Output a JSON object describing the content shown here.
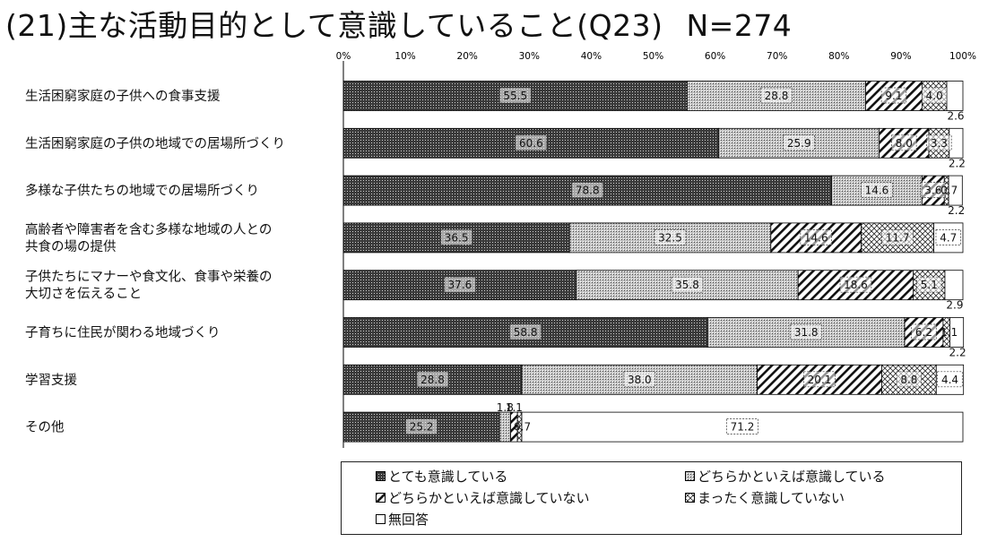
{
  "title": "(21)主な活動目的として意識していること(Q23)",
  "n_label": "N=274",
  "chart_data": {
    "type": "bar",
    "orientation": "horizontal",
    "stacked": "percent",
    "title": "(21)主な活動目的として意識していること(Q23)",
    "xlim": [
      0,
      100
    ],
    "x_ticks": [
      "0%",
      "10%",
      "20%",
      "30%",
      "40%",
      "50%",
      "60%",
      "70%",
      "80%",
      "90%",
      "100%"
    ],
    "categories": [
      "生活困窮家庭の子供への食事支援",
      "生活困窮家庭の子供の地域での居場所づくり",
      "多様な子供たちの地域での居場所づくり",
      "高齢者や障害者を含む多様な地域の人との\n共食の場の提供",
      "子供たちにマナーや食文化、食事や栄養の\n大切さを伝えること",
      "子育ちに住民が関わる地域づくり",
      "学習支援",
      "その他"
    ],
    "series": [
      {
        "name": "とても意識している",
        "values": [
          55.5,
          60.6,
          78.8,
          36.5,
          37.6,
          58.8,
          28.8,
          25.2
        ],
        "labels": [
          "55.5",
          "60.6",
          "78.8",
          "36.5",
          "37.6",
          "58.8",
          "28.8",
          "25.2"
        ]
      },
      {
        "name": "どちらかといえば意識している",
        "values": [
          28.8,
          25.9,
          14.6,
          32.5,
          35.8,
          31.8,
          38.0,
          1.8
        ],
        "labels": [
          "28.8",
          "25.9",
          "14.6",
          "32.5",
          "35.8",
          "31.8",
          "38.0",
          "1.8"
        ]
      },
      {
        "name": "どちらかといえば意識していない",
        "values": [
          9.1,
          8.0,
          3.6,
          14.6,
          18.6,
          6.2,
          20.1,
          1.1
        ],
        "labels": [
          "9.1",
          "8.0",
          "3.6",
          "14.6",
          "18.6",
          "6.2",
          "20.1",
          "1.1"
        ]
      },
      {
        "name": "まったく意識していない",
        "values": [
          4.0,
          3.3,
          0.7,
          11.7,
          5.1,
          1.1,
          8.8,
          0.7
        ],
        "labels": [
          "4.0",
          "3.3",
          "0.7",
          "11.7",
          "5.1",
          "1.1",
          "8.8",
          "0.7"
        ]
      },
      {
        "name": "無回答",
        "values": [
          2.6,
          2.2,
          2.2,
          4.7,
          2.9,
          2.2,
          4.4,
          71.2
        ],
        "labels": [
          "2.6",
          "2.2",
          "2.2",
          "4.7",
          "2.9",
          "2.2",
          "4.4",
          "71.2"
        ]
      }
    ],
    "legend_position": "bottom",
    "grid": false
  }
}
